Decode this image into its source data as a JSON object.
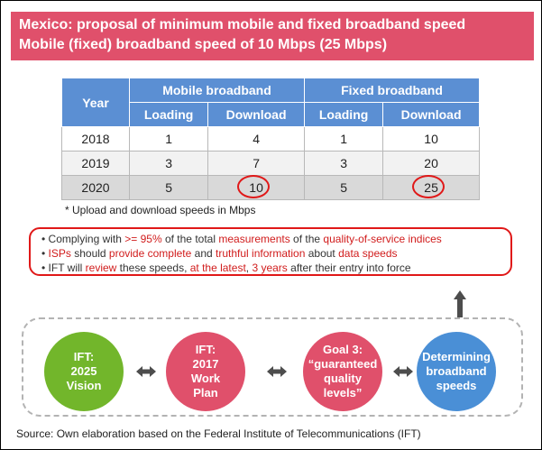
{
  "header": {
    "line1": "Mexico: proposal of minimum mobile and fixed broadband speed",
    "line2": "Mobile (fixed) broadband speed of 10 Mbps (25 Mbps)"
  },
  "table": {
    "col_year": "Year",
    "group_mobile": "Mobile broadband",
    "group_fixed": "Fixed broadband",
    "sub_loading": "Loading",
    "sub_download": "Download",
    "rows": [
      {
        "year": "2018",
        "m_load": "1",
        "m_down": "4",
        "f_load": "1",
        "f_down": "10"
      },
      {
        "year": "2019",
        "m_load": "3",
        "m_down": "7",
        "f_load": "3",
        "f_down": "20"
      },
      {
        "year": "2020",
        "m_load": "5",
        "m_down": "10",
        "f_load": "5",
        "f_down": "25"
      }
    ]
  },
  "footnote": "* Upload and download speeds in Mbps",
  "notes": {
    "b1": [
      "Complying with ",
      ">= 95%",
      " of the total ",
      "measurements",
      " of the ",
      "quality-of-service  indices"
    ],
    "b2": [
      "ISPs",
      " should ",
      "provide  complete",
      " and ",
      "truthful information",
      " about ",
      "data speeds"
    ],
    "b3": [
      "IFT will ",
      "review",
      "  these speeds, ",
      "at the latest",
      ", ",
      "3 years",
      " after their entry into force"
    ]
  },
  "cycle": {
    "c1": "IFT:\n2025\nVision",
    "c2": "IFT:\n2017\nWork\nPlan",
    "c3": "Goal 3:\n“guaranteed\nquality levels”",
    "c4": "Determining\nbroadband\nspeeds"
  },
  "source": "Source: Own elaboration based on the Federal Institute of Telecommunications (IFT)",
  "colors": {
    "pink": "#e0506b",
    "blue_header": "#5b8fd3",
    "green": "#72b62b",
    "blue_circle": "#4a8fd6",
    "red": "#e01818"
  }
}
